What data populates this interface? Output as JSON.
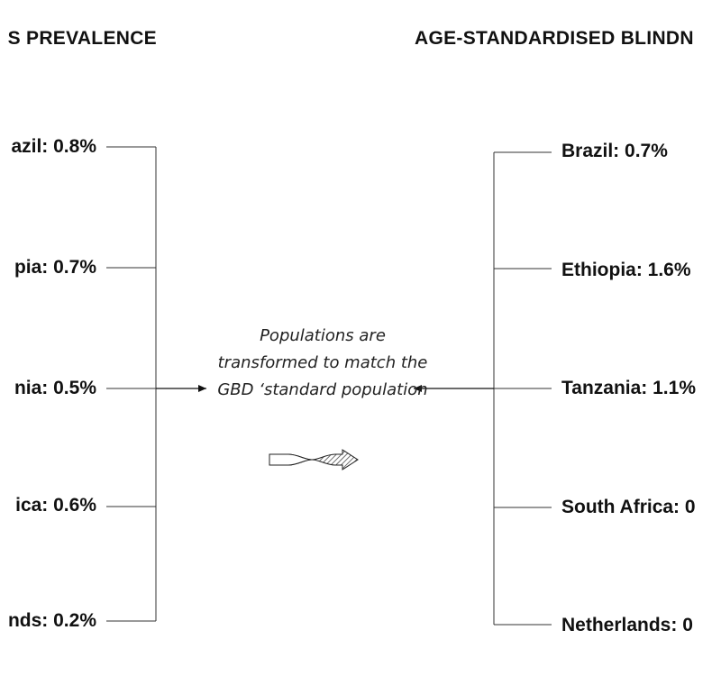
{
  "left_column": {
    "heading": "S PREVALENCE",
    "items": [
      {
        "label": "azil: 0.8%"
      },
      {
        "label": "pia: 0.7%"
      },
      {
        "label": "nia: 0.5%"
      },
      {
        "label": "ica: 0.6%"
      },
      {
        "label": "nds: 0.2%"
      }
    ]
  },
  "right_column": {
    "heading": "AGE-STANDARDISED BLINDN",
    "items": [
      {
        "label": "Brazil: 0.7%"
      },
      {
        "label": "Ethiopia: 1.6%"
      },
      {
        "label": "Tanzania: 1.1%"
      },
      {
        "label": "South Africa: 0"
      },
      {
        "label": "Netherlands: 0"
      }
    ]
  },
  "middle": {
    "note": "Populations are transformed to match the GBD ‘standard population",
    "icon": "transform-arrow-icon"
  },
  "colors": {
    "text": "#111111",
    "line": "#333333"
  }
}
